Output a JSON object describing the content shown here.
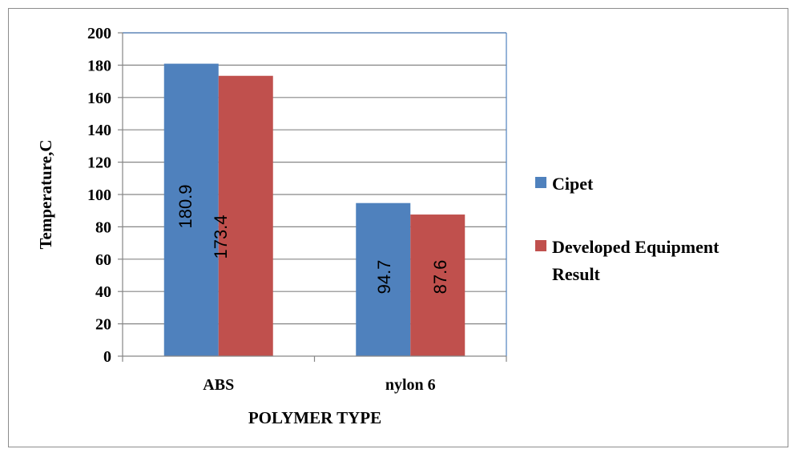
{
  "chart_data": {
    "type": "bar",
    "categories": [
      "ABS",
      "nylon 6"
    ],
    "series": [
      {
        "name": "Cipet",
        "values": [
          180.9,
          94.7
        ],
        "color": "#4f81bd"
      },
      {
        "name": "Developed Equipment Result",
        "values": [
          173.4,
          87.6
        ],
        "color": "#c0504d"
      }
    ],
    "data_labels": [
      [
        "180.9",
        "94.7"
      ],
      [
        "173.4",
        "87.6"
      ]
    ],
    "xlabel": "POLYMER TYPE",
    "ylabel": "Temperature,C",
    "ylim": [
      0,
      200
    ],
    "yticks": [
      0,
      20,
      40,
      60,
      80,
      100,
      120,
      140,
      160,
      180,
      200
    ],
    "grid": true,
    "legend_position": "right",
    "legend": [
      {
        "lines": [
          "Cipet"
        ],
        "color": "#4f81bd"
      },
      {
        "lines": [
          "Developed Equipment",
          "Result"
        ],
        "color": "#c0504d"
      }
    ],
    "data_labels_rotated": true
  }
}
